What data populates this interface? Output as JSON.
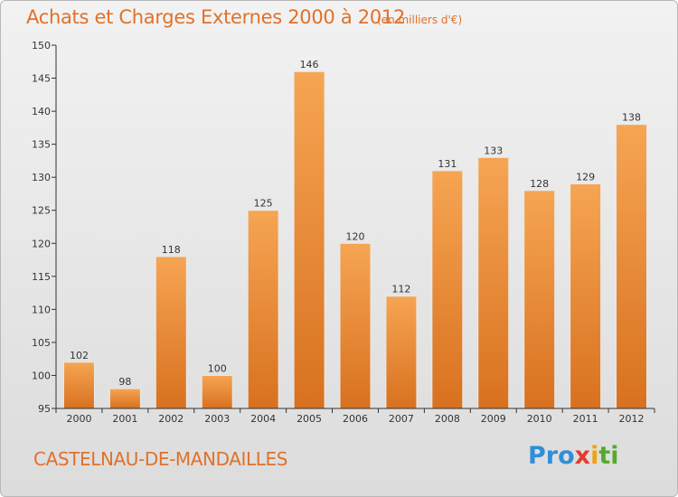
{
  "header": {
    "title": "Achats et Charges Externes 2000 à 2012",
    "unit": "(en milliers d'€)"
  },
  "footer": {
    "commune": "CASTELNAU-DE-MANDAILLES",
    "brand": [
      "Pro",
      "x",
      "i",
      "ti"
    ]
  },
  "colors": {
    "title": "#e0712a",
    "bar_light": "#f6a553",
    "bar_dark": "#d8711f"
  },
  "chart_data": {
    "type": "bar",
    "title": "Achats et Charges Externes 2000 à 2012",
    "xlabel": "",
    "ylabel": "",
    "categories": [
      "2000",
      "2001",
      "2002",
      "2003",
      "2004",
      "2005",
      "2006",
      "2007",
      "2008",
      "2009",
      "2010",
      "2011",
      "2012"
    ],
    "values": [
      102,
      98,
      118,
      100,
      125,
      146,
      120,
      112,
      131,
      133,
      128,
      129,
      138
    ],
    "ylim": [
      95,
      150
    ],
    "yticks": [
      95,
      100,
      105,
      110,
      115,
      120,
      125,
      130,
      135,
      140,
      145,
      150
    ],
    "grid": false,
    "data_labels": true
  }
}
